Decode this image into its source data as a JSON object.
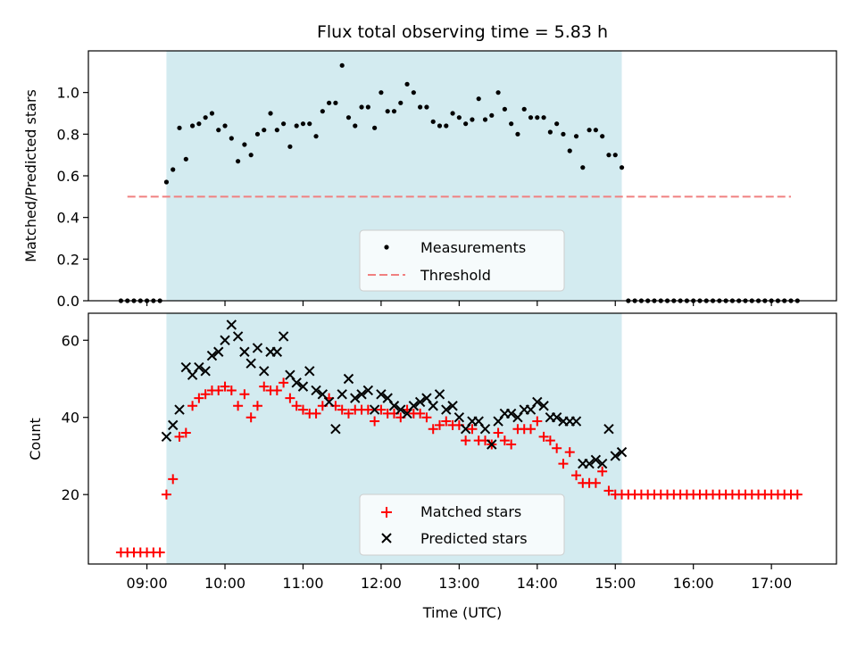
{
  "chart_data": [
    {
      "type": "scatter",
      "title": "Flux total observing time = 5.83 h",
      "ylabel": "Matched/Predicted stars",
      "xlabel": "",
      "ylim": [
        0,
        1.2
      ],
      "yticks": [
        0.0,
        0.2,
        0.4,
        0.6,
        0.8,
        1.0
      ],
      "ytick_labels": [
        "0.0",
        "0.2",
        "0.4",
        "0.6",
        "0.8",
        "1.0"
      ],
      "observing_window": {
        "start": "09:15",
        "end": "15:05",
        "color": "#d3ebf0"
      },
      "legend": {
        "position": "lower-center",
        "entries": [
          "Measurements",
          "Threshold"
        ]
      },
      "threshold": {
        "name": "Threshold",
        "value": 0.5,
        "x_start": "08:45",
        "x_end": "17:15",
        "color": "#f08080",
        "style": "dashed"
      },
      "series": [
        {
          "name": "Measurements",
          "color": "#000000",
          "marker": "dot",
          "x": [
            "08:40",
            "08:45",
            "08:50",
            "08:55",
            "09:00",
            "09:05",
            "09:10",
            "09:15",
            "09:20",
            "09:25",
            "09:30",
            "09:35",
            "09:40",
            "09:45",
            "09:50",
            "09:55",
            "10:00",
            "10:05",
            "10:10",
            "10:15",
            "10:20",
            "10:25",
            "10:30",
            "10:35",
            "10:40",
            "10:45",
            "10:50",
            "10:55",
            "11:00",
            "11:05",
            "11:10",
            "11:15",
            "11:20",
            "11:25",
            "11:30",
            "11:35",
            "11:40",
            "11:45",
            "11:50",
            "11:55",
            "12:00",
            "12:05",
            "12:10",
            "12:15",
            "12:20",
            "12:25",
            "12:30",
            "12:35",
            "12:40",
            "12:45",
            "12:50",
            "12:55",
            "13:00",
            "13:05",
            "13:10",
            "13:15",
            "13:20",
            "13:25",
            "13:30",
            "13:35",
            "13:40",
            "13:45",
            "13:50",
            "13:55",
            "14:00",
            "14:05",
            "14:10",
            "14:15",
            "14:20",
            "14:25",
            "14:30",
            "14:35",
            "14:40",
            "14:45",
            "14:50",
            "14:55",
            "15:00",
            "15:05",
            "15:10",
            "15:15",
            "15:20",
            "15:25",
            "15:30",
            "15:35",
            "15:40",
            "15:45",
            "15:50",
            "15:55",
            "16:00",
            "16:05",
            "16:10",
            "16:15",
            "16:20",
            "16:25",
            "16:30",
            "16:35",
            "16:40",
            "16:45",
            "16:50",
            "16:55",
            "17:00",
            "17:05",
            "17:10",
            "17:15",
            "17:20"
          ],
          "y": [
            0,
            0,
            0,
            0,
            0,
            0,
            0,
            0.57,
            0.63,
            0.83,
            0.68,
            0.84,
            0.85,
            0.88,
            0.9,
            0.82,
            0.84,
            0.78,
            0.67,
            0.75,
            0.7,
            0.8,
            0.82,
            0.9,
            0.82,
            0.85,
            0.74,
            0.84,
            0.85,
            0.85,
            0.79,
            0.91,
            0.95,
            0.95,
            1.13,
            0.88,
            0.84,
            0.93,
            0.93,
            0.83,
            1.0,
            0.91,
            0.91,
            0.95,
            1.04,
            1.0,
            0.93,
            0.93,
            0.86,
            0.84,
            0.84,
            0.9,
            0.88,
            0.85,
            0.87,
            0.97,
            0.87,
            0.89,
            1.0,
            0.92,
            0.85,
            0.8,
            0.92,
            0.88,
            0.88,
            0.88,
            0.81,
            0.85,
            0.8,
            0.72,
            0.79,
            0.64,
            0.82,
            0.82,
            0.79,
            0.7,
            0.7,
            0.64,
            0,
            0,
            0,
            0,
            0,
            0,
            0,
            0,
            0,
            0,
            0,
            0,
            0,
            0,
            0,
            0,
            0,
            0,
            0,
            0,
            0,
            0,
            0,
            0,
            0,
            0,
            0
          ]
        }
      ]
    },
    {
      "type": "scatter",
      "title": "",
      "xlabel": "Time (UTC)",
      "ylabel": "Count",
      "ylim": [
        2,
        67
      ],
      "yticks": [
        20,
        40,
        60
      ],
      "ytick_labels": [
        "20",
        "40",
        "60"
      ],
      "xticks": [
        "09:00",
        "10:00",
        "11:00",
        "12:00",
        "13:00",
        "14:00",
        "15:00",
        "16:00",
        "17:00"
      ],
      "xlim": [
        "08:15",
        "17:50"
      ],
      "observing_window": {
        "start": "09:15",
        "end": "15:05",
        "color": "#d3ebf0"
      },
      "legend": {
        "position": "lower-center",
        "entries": [
          "Matched stars",
          "Predicted stars"
        ]
      },
      "series": [
        {
          "name": "Matched stars",
          "color": "#ff0000",
          "marker": "plus",
          "x": [
            "08:40",
            "08:45",
            "08:50",
            "08:55",
            "09:00",
            "09:05",
            "09:10",
            "09:15",
            "09:20",
            "09:25",
            "09:30",
            "09:35",
            "09:40",
            "09:45",
            "09:50",
            "09:55",
            "10:00",
            "10:05",
            "10:10",
            "10:15",
            "10:20",
            "10:25",
            "10:30",
            "10:35",
            "10:40",
            "10:45",
            "10:50",
            "10:55",
            "11:00",
            "11:05",
            "11:10",
            "11:15",
            "11:20",
            "11:25",
            "11:30",
            "11:35",
            "11:40",
            "11:45",
            "11:50",
            "11:55",
            "12:00",
            "12:05",
            "12:10",
            "12:15",
            "12:20",
            "12:25",
            "12:30",
            "12:35",
            "12:40",
            "12:45",
            "12:50",
            "12:55",
            "13:00",
            "13:05",
            "13:10",
            "13:15",
            "13:20",
            "13:25",
            "13:30",
            "13:35",
            "13:40",
            "13:45",
            "13:50",
            "13:55",
            "14:00",
            "14:05",
            "14:10",
            "14:15",
            "14:20",
            "14:25",
            "14:30",
            "14:35",
            "14:40",
            "14:45",
            "14:50",
            "14:55",
            "15:00",
            "15:05",
            "15:10",
            "15:15",
            "15:20",
            "15:25",
            "15:30",
            "15:35",
            "15:40",
            "15:45",
            "15:50",
            "15:55",
            "16:00",
            "16:05",
            "16:10",
            "16:15",
            "16:20",
            "16:25",
            "16:30",
            "16:35",
            "16:40",
            "16:45",
            "16:50",
            "16:55",
            "17:00",
            "17:05",
            "17:10",
            "17:15",
            "17:20"
          ],
          "y": [
            5,
            5,
            5,
            5,
            5,
            5,
            5,
            20,
            24,
            35,
            36,
            43,
            45,
            46,
            47,
            47,
            48,
            47,
            43,
            46,
            40,
            43,
            48,
            47,
            47,
            49,
            45,
            43,
            42,
            41,
            41,
            43,
            45,
            43,
            42,
            41,
            42,
            42,
            42,
            39,
            42,
            41,
            41,
            40,
            42,
            41,
            41,
            40,
            37,
            38,
            39,
            38,
            38,
            34,
            37,
            34,
            34,
            33,
            36,
            34,
            33,
            37,
            37,
            37,
            39,
            35,
            34,
            32,
            28,
            31,
            25,
            23,
            23,
            23,
            26,
            21,
            20,
            20,
            20,
            20,
            20,
            20,
            20,
            20,
            20,
            20,
            20,
            20,
            20,
            20,
            20,
            20,
            20,
            20,
            20,
            20,
            20,
            20,
            20,
            20,
            20,
            20,
            20,
            20,
            20
          ]
        },
        {
          "name": "Predicted stars",
          "color": "#000000",
          "marker": "x",
          "x": [
            "09:15",
            "09:20",
            "09:25",
            "09:30",
            "09:35",
            "09:40",
            "09:45",
            "09:50",
            "09:55",
            "10:00",
            "10:05",
            "10:10",
            "10:15",
            "10:20",
            "10:25",
            "10:30",
            "10:35",
            "10:40",
            "10:45",
            "10:50",
            "10:55",
            "11:00",
            "11:05",
            "11:10",
            "11:15",
            "11:20",
            "11:25",
            "11:30",
            "11:35",
            "11:40",
            "11:45",
            "11:50",
            "11:55",
            "12:00",
            "12:05",
            "12:10",
            "12:15",
            "12:20",
            "12:25",
            "12:30",
            "12:35",
            "12:40",
            "12:45",
            "12:50",
            "12:55",
            "13:00",
            "13:05",
            "13:10",
            "13:15",
            "13:20",
            "13:25",
            "13:30",
            "13:35",
            "13:40",
            "13:45",
            "13:50",
            "13:55",
            "14:00",
            "14:05",
            "14:10",
            "14:15",
            "14:20",
            "14:25",
            "14:30",
            "14:35",
            "14:40",
            "14:45",
            "14:50",
            "14:55",
            "15:00",
            "15:05"
          ],
          "y": [
            35,
            38,
            42,
            53,
            51,
            53,
            52,
            56,
            57,
            60,
            64,
            61,
            57,
            54,
            58,
            52,
            57,
            57,
            61,
            51,
            49,
            48,
            52,
            47,
            46,
            44,
            37,
            46,
            50,
            45,
            46,
            47,
            42,
            46,
            45,
            43,
            42,
            41,
            43,
            44,
            45,
            43,
            46,
            42,
            43,
            40,
            37,
            39,
            39,
            37,
            33,
            39,
            41,
            41,
            40,
            42,
            42,
            44,
            43,
            40,
            40,
            39,
            39,
            39,
            28,
            28,
            29,
            28,
            37,
            30,
            31
          ]
        }
      ]
    }
  ]
}
